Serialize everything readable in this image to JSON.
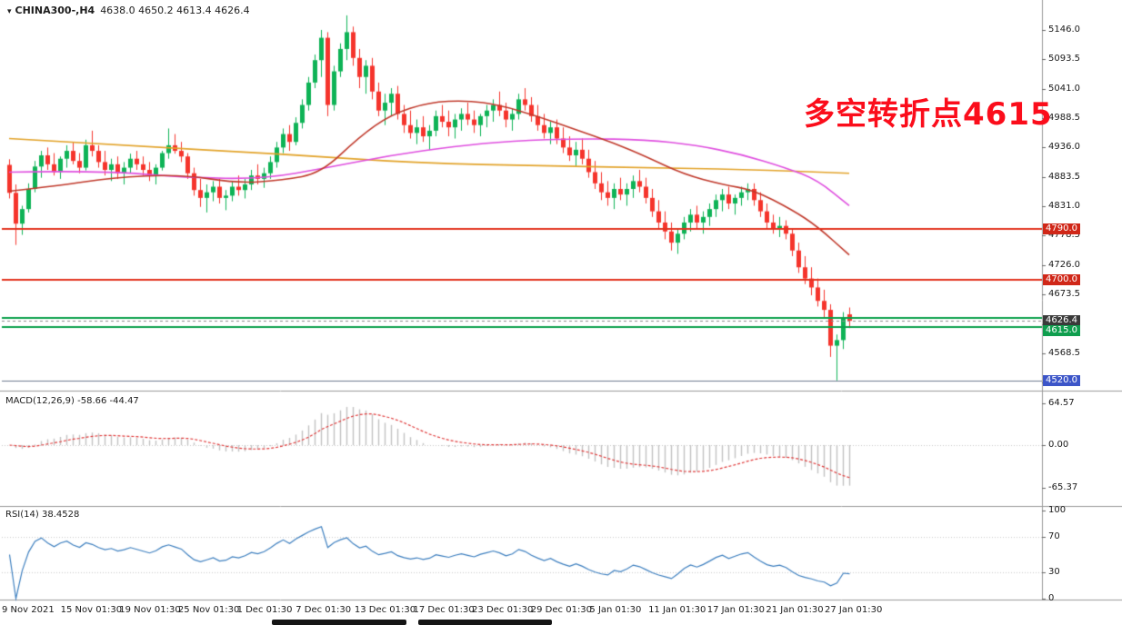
{
  "header": {
    "symbol_icon": "▾",
    "symbol_title": "CHINA300-,H4",
    "ohlc_values": "4638.0 4650.2 4613.4 4626.4"
  },
  "annotation": {
    "text": "多空转折点4615",
    "color": "#fb0d1b"
  },
  "colors": {
    "candle_up": "#0eb356",
    "candle_down": "#f5342c",
    "ma_fast": "#c0392b",
    "ma_mid": "#df4fdf",
    "ma_slow": "#e2a32a",
    "macd_hist": "#c2c2c2",
    "macd_signal": "#e03a3a",
    "rsi_line": "#3d7fbf",
    "axis_line": "#9a9a9a",
    "level_line": "#c8c8c8"
  },
  "chart_data": [
    {
      "type": "candlestick",
      "symbol": "CHINA300-",
      "timeframe": "H4",
      "ylim": [
        4505,
        5180
      ],
      "y_ticks": [
        "5146.0",
        "5093.5",
        "5041.0",
        "4988.5",
        "4936.0",
        "4883.5",
        "4831.0",
        "4778.5",
        "4726.0",
        "4673.5",
        "4621.0",
        "4568.5",
        "4516.0"
      ],
      "x_labels": [
        "9 Nov 2021",
        "15 Nov 01:30",
        "19 Nov 01:30",
        "25 Nov 01:30",
        "1 Dec 01:30",
        "7 Dec 01:30",
        "13 Dec 01:30",
        "17 Dec 01:30",
        "23 Dec 01:30",
        "29 Dec 01:30",
        "5 Jan 01:30",
        "11 Jan 01:30",
        "17 Jan 01:30",
        "21 Jan 01:30",
        "27 Jan 01:30"
      ],
      "hlines": [
        {
          "price": 4790.0,
          "color": "#e2321e",
          "width": 2,
          "dash": false
        },
        {
          "price": 4700.0,
          "color": "#e2321e",
          "width": 2,
          "dash": false
        },
        {
          "price": 4632.0,
          "color": "#0ca04c",
          "width": 2,
          "dash": false
        },
        {
          "price": 4626.4,
          "color": "#8a8a8a",
          "width": 1,
          "dash": true
        },
        {
          "price": 4615.0,
          "color": "#0ca04c",
          "width": 2,
          "dash": false
        },
        {
          "price": 4520.0,
          "color": "#6e7b8f",
          "width": 1,
          "dash": false
        }
      ],
      "tags": [
        {
          "price": 4790.0,
          "text": "4790.0",
          "bg": "#d02718"
        },
        {
          "price": 4700.0,
          "text": "4700.0",
          "bg": "#d02718"
        },
        {
          "price": 4626.4,
          "text": "4626.4",
          "bg": "#3a3a3a"
        },
        {
          "price": 4615.0,
          "text": "4615.0",
          "bg": "#0f9e4e"
        },
        {
          "price": 4520.0,
          "text": "4520.0",
          "bg": "#3c55c8"
        }
      ],
      "moving_averages": [
        {
          "name": "ma-slow-orange",
          "color": "#e2a32a",
          "points": [
            [
              0,
              4952
            ],
            [
              20,
              4938
            ],
            [
              42,
              4925
            ],
            [
              64,
              4908
            ],
            [
              85,
              4903
            ],
            [
              100,
              4900
            ],
            [
              115,
              4897
            ],
            [
              132,
              4890
            ]
          ]
        },
        {
          "name": "ma-mid-magenta",
          "color": "#df4fdf",
          "points": [
            [
              0,
              4892
            ],
            [
              14,
              4895
            ],
            [
              28,
              4882
            ],
            [
              40,
              4880
            ],
            [
              50,
              4900
            ],
            [
              60,
              4922
            ],
            [
              70,
              4938
            ],
            [
              79,
              4948
            ],
            [
              90,
              4952
            ],
            [
              100,
              4950
            ],
            [
              108,
              4940
            ],
            [
              115,
              4924
            ],
            [
              122,
              4900
            ],
            [
              127,
              4878
            ],
            [
              132,
              4832
            ]
          ]
        },
        {
          "name": "ma-fast-red",
          "color": "#c0392b",
          "points": [
            [
              0,
              4858
            ],
            [
              8,
              4868
            ],
            [
              16,
              4882
            ],
            [
              27,
              4888
            ],
            [
              36,
              4872
            ],
            [
              43,
              4878
            ],
            [
              49,
              4890
            ],
            [
              55,
              4955
            ],
            [
              60,
              4995
            ],
            [
              66,
              5017
            ],
            [
              72,
              5020
            ],
            [
              77,
              5012
            ],
            [
              83,
              4992
            ],
            [
              89,
              4968
            ],
            [
              95,
              4944
            ],
            [
              100,
              4920
            ],
            [
              106,
              4888
            ],
            [
              112,
              4870
            ],
            [
              117,
              4860
            ],
            [
              123,
              4825
            ],
            [
              127,
              4795
            ],
            [
              132,
              4744
            ]
          ]
        }
      ],
      "candles": [
        [
          4905,
          4915,
          4845,
          4855
        ],
        [
          4855,
          4870,
          4762,
          4800
        ],
        [
          4800,
          4832,
          4780,
          4826
        ],
        [
          4826,
          4872,
          4820,
          4862
        ],
        [
          4862,
          4912,
          4856,
          4902
        ],
        [
          4902,
          4930,
          4882,
          4922
        ],
        [
          4922,
          4936,
          4896,
          4906
        ],
        [
          4906,
          4926,
          4886,
          4892
        ],
        [
          4892,
          4920,
          4880,
          4916
        ],
        [
          4916,
          4940,
          4900,
          4930
        ],
        [
          4930,
          4946,
          4906,
          4912
        ],
        [
          4912,
          4926,
          4890,
          4900
        ],
        [
          4900,
          4950,
          4895,
          4940
        ],
        [
          4940,
          4966,
          4920,
          4930
        ],
        [
          4930,
          4940,
          4900,
          4910
        ],
        [
          4910,
          4930,
          4886,
          4896
        ],
        [
          4896,
          4916,
          4876,
          4906
        ],
        [
          4906,
          4920,
          4880,
          4890
        ],
        [
          4890,
          4910,
          4870,
          4900
        ],
        [
          4900,
          4925,
          4890,
          4916
        ],
        [
          4916,
          4930,
          4896,
          4906
        ],
        [
          4906,
          4920,
          4886,
          4896
        ],
        [
          4896,
          4910,
          4876,
          4886
        ],
        [
          4886,
          4906,
          4870,
          4900
        ],
        [
          4900,
          4930,
          4895,
          4926
        ],
        [
          4926,
          4970,
          4916,
          4940
        ],
        [
          4940,
          4960,
          4925,
          4930
        ],
        [
          4930,
          4946,
          4910,
          4920
        ],
        [
          4920,
          4926,
          4880,
          4890
        ],
        [
          4890,
          4900,
          4850,
          4860
        ],
        [
          4860,
          4880,
          4830,
          4846
        ],
        [
          4846,
          4870,
          4820,
          4856
        ],
        [
          4856,
          4876,
          4840,
          4866
        ],
        [
          4866,
          4880,
          4836,
          4846
        ],
        [
          4846,
          4860,
          4824,
          4850
        ],
        [
          4850,
          4876,
          4840,
          4866
        ],
        [
          4866,
          4886,
          4850,
          4860
        ],
        [
          4860,
          4880,
          4845,
          4870
        ],
        [
          4870,
          4896,
          4860,
          4886
        ],
        [
          4886,
          4906,
          4870,
          4880
        ],
        [
          4880,
          4900,
          4864,
          4890
        ],
        [
          4890,
          4920,
          4880,
          4910
        ],
        [
          4910,
          4946,
          4900,
          4936
        ],
        [
          4936,
          4970,
          4926,
          4960
        ],
        [
          4960,
          4976,
          4930,
          4946
        ],
        [
          4946,
          4990,
          4940,
          4980
        ],
        [
          4980,
          5022,
          4970,
          5012
        ],
        [
          5012,
          5062,
          5002,
          5052
        ],
        [
          5052,
          5102,
          5042,
          5092
        ],
        [
          5092,
          5146,
          5062,
          5132
        ],
        [
          5132,
          5142,
          4992,
          5012
        ],
        [
          5012,
          5082,
          5002,
          5072
        ],
        [
          5072,
          5122,
          5062,
          5112
        ],
        [
          5112,
          5172,
          5092,
          5142
        ],
        [
          5142,
          5152,
          5082,
          5096
        ],
        [
          5096,
          5112,
          5042,
          5062
        ],
        [
          5062,
          5092,
          5032,
          5082
        ],
        [
          5082,
          5096,
          5022,
          5036
        ],
        [
          5036,
          5052,
          4992,
          5002
        ],
        [
          5002,
          5032,
          4976,
          5016
        ],
        [
          5016,
          5042,
          4992,
          5032
        ],
        [
          5032,
          5046,
          4986,
          4996
        ],
        [
          4996,
          5012,
          4962,
          4976
        ],
        [
          4976,
          5002,
          4952,
          4962
        ],
        [
          4962,
          4986,
          4942,
          4972
        ],
        [
          4972,
          4992,
          4946,
          4956
        ],
        [
          4956,
          4976,
          4932,
          4966
        ],
        [
          4966,
          5002,
          4956,
          4992
        ],
        [
          4992,
          5012,
          4972,
          4982
        ],
        [
          4982,
          5002,
          4956,
          4972
        ],
        [
          4972,
          4996,
          4952,
          4986
        ],
        [
          4986,
          5006,
          4966,
          4996
        ],
        [
          4996,
          5016,
          4976,
          4986
        ],
        [
          4986,
          5002,
          4962,
          4976
        ],
        [
          4976,
          4996,
          4956,
          4992
        ],
        [
          4992,
          5012,
          4972,
          5002
        ],
        [
          5002,
          5022,
          4982,
          5012
        ],
        [
          5012,
          5036,
          4992,
          5002
        ],
        [
          5002,
          5016,
          4972,
          4986
        ],
        [
          4986,
          5006,
          4966,
          4996
        ],
        [
          4996,
          5032,
          4986,
          5022
        ],
        [
          5022,
          5042,
          5002,
          5012
        ],
        [
          5012,
          5026,
          4982,
          4992
        ],
        [
          4992,
          5012,
          4966,
          4976
        ],
        [
          4976,
          4996,
          4952,
          4962
        ],
        [
          4962,
          4982,
          4942,
          4972
        ],
        [
          4972,
          4986,
          4942,
          4952
        ],
        [
          4952,
          4972,
          4926,
          4936
        ],
        [
          4936,
          4956,
          4912,
          4922
        ],
        [
          4922,
          4946,
          4902,
          4932
        ],
        [
          4932,
          4952,
          4906,
          4916
        ],
        [
          4916,
          4932,
          4882,
          4892
        ],
        [
          4892,
          4912,
          4862,
          4872
        ],
        [
          4872,
          4892,
          4842,
          4856
        ],
        [
          4856,
          4876,
          4832,
          4846
        ],
        [
          4846,
          4872,
          4826,
          4862
        ],
        [
          4862,
          4882,
          4842,
          4852
        ],
        [
          4852,
          4872,
          4832,
          4862
        ],
        [
          4862,
          4886,
          4846,
          4876
        ],
        [
          4876,
          4896,
          4856,
          4866
        ],
        [
          4866,
          4882,
          4836,
          4846
        ],
        [
          4846,
          4862,
          4812,
          4822
        ],
        [
          4822,
          4842,
          4792,
          4802
        ],
        [
          4802,
          4822,
          4772,
          4786
        ],
        [
          4786,
          4802,
          4752,
          4766
        ],
        [
          4766,
          4792,
          4746,
          4782
        ],
        [
          4782,
          4812,
          4772,
          4802
        ],
        [
          4802,
          4826,
          4786,
          4816
        ],
        [
          4816,
          4832,
          4792,
          4802
        ],
        [
          4802,
          4822,
          4782,
          4812
        ],
        [
          4812,
          4836,
          4796,
          4826
        ],
        [
          4826,
          4852,
          4812,
          4842
        ],
        [
          4842,
          4862,
          4822,
          4852
        ],
        [
          4852,
          4866,
          4826,
          4836
        ],
        [
          4836,
          4852,
          4816,
          4846
        ],
        [
          4846,
          4866,
          4832,
          4856
        ],
        [
          4856,
          4872,
          4842,
          4862
        ],
        [
          4862,
          4872,
          4832,
          4842
        ],
        [
          4842,
          4856,
          4812,
          4822
        ],
        [
          4822,
          4836,
          4792,
          4802
        ],
        [
          4802,
          4816,
          4782,
          4792
        ],
        [
          4792,
          4812,
          4776,
          4796
        ],
        [
          4796,
          4806,
          4772,
          4782
        ],
        [
          4782,
          4792,
          4742,
          4752
        ],
        [
          4752,
          4766,
          4712,
          4722
        ],
        [
          4722,
          4742,
          4692,
          4702
        ],
        [
          4702,
          4722,
          4672,
          4686
        ],
        [
          4686,
          4702,
          4652,
          4662
        ],
        [
          4662,
          4682,
          4632,
          4646
        ],
        [
          4646,
          4656,
          4562,
          4582
        ],
        [
          4582,
          4602,
          4520,
          4592
        ],
        [
          4592,
          4642,
          4576,
          4632
        ],
        [
          4638,
          4650.2,
          4613.4,
          4626.4
        ]
      ]
    },
    {
      "type": "macd",
      "label": "MACD(12,26,9)",
      "values": "-58.66 -44.47",
      "fast": 12,
      "slow": 26,
      "signal": 9,
      "y_ticks": [
        "64.57",
        "0.00",
        "-65.37"
      ],
      "tick_values": [
        64.57,
        0,
        -65.37
      ]
    },
    {
      "type": "rsi",
      "label": "RSI(14)",
      "value": "38.4528",
      "period": 14,
      "levels": [
        70,
        30
      ],
      "y_ticks": [
        "100",
        "70",
        "30",
        "0"
      ],
      "tick_values": [
        100,
        70,
        30,
        0
      ]
    }
  ]
}
